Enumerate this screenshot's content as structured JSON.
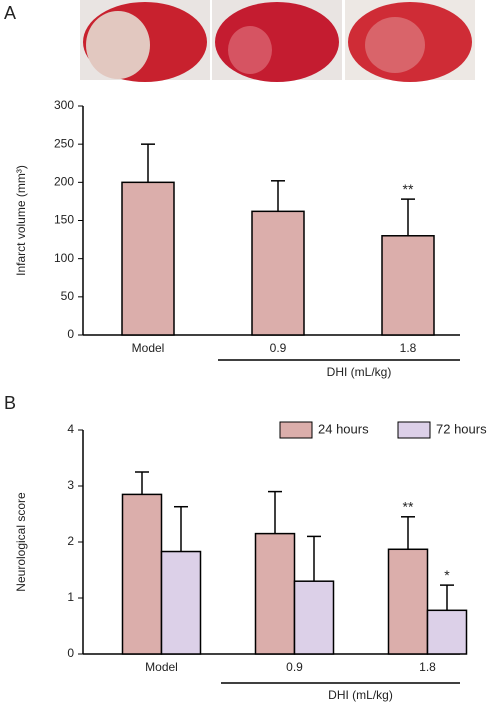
{
  "chart_data": [
    {
      "type": "bar",
      "panel": "A",
      "y_label": "Infarct volume (mm³)",
      "categories": [
        "Model",
        "0.9",
        "1.8"
      ],
      "values": [
        200,
        162,
        130
      ],
      "errors": [
        50,
        40,
        48
      ],
      "annotations": [
        null,
        null,
        "**"
      ],
      "color": "#dbaeab",
      "group_label": "DHI (mL/kg)",
      "ylim": [
        0,
        300
      ],
      "yticks": [
        0,
        50,
        100,
        150,
        200,
        250,
        300
      ]
    },
    {
      "type": "bar",
      "panel": "B",
      "y_label": "Neurological score",
      "categories": [
        "Model",
        "0.9",
        "1.8"
      ],
      "series": [
        {
          "name": "24 hours",
          "color": "#dbaeab",
          "values": [
            2.85,
            2.15,
            1.87
          ],
          "errors": [
            0.4,
            0.75,
            0.58
          ],
          "annotations": [
            null,
            null,
            "**"
          ]
        },
        {
          "name": "72 hours",
          "color": "#dcd0e8",
          "values": [
            1.83,
            1.3,
            0.78
          ],
          "errors": [
            0.8,
            0.8,
            0.45
          ],
          "annotations": [
            null,
            null,
            "*"
          ]
        }
      ],
      "group_label": "DHI (mL/kg)",
      "legend": "top-right",
      "ylim": [
        0,
        4
      ],
      "yticks": [
        0,
        1,
        2,
        3,
        4
      ]
    }
  ]
}
